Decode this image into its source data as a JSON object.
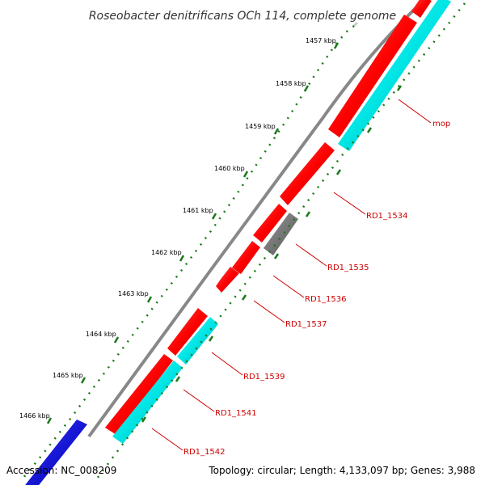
{
  "title": "Roseobacter denitrificans OCh 114, complete genome",
  "accession": "Accession: NC_008209",
  "summary": "Topology: circular; Length: 4,133,097 bp; Genes: 3,988",
  "ticks": [
    "1457 kbp",
    "1458 kbp",
    "1459 kbp",
    "1460 kbp",
    "1461 kbp",
    "1462 kbp",
    "1463 kbp",
    "1464 kbp",
    "1465 kbp",
    "1466 kbp"
  ],
  "gene_labels": [
    "mop",
    "RD1_1534",
    "RD1_1535",
    "RD1_1536",
    "RD1_1537",
    "RD1_1539",
    "RD1_1541",
    "RD1_1542"
  ],
  "colors": {
    "cds": "#ff0000",
    "gene": "#00e5e5",
    "other": "#666666",
    "blue": "#0000ee",
    "backbone": "#888888",
    "ticks": "#1a7a1a",
    "label": "#cc0000"
  }
}
